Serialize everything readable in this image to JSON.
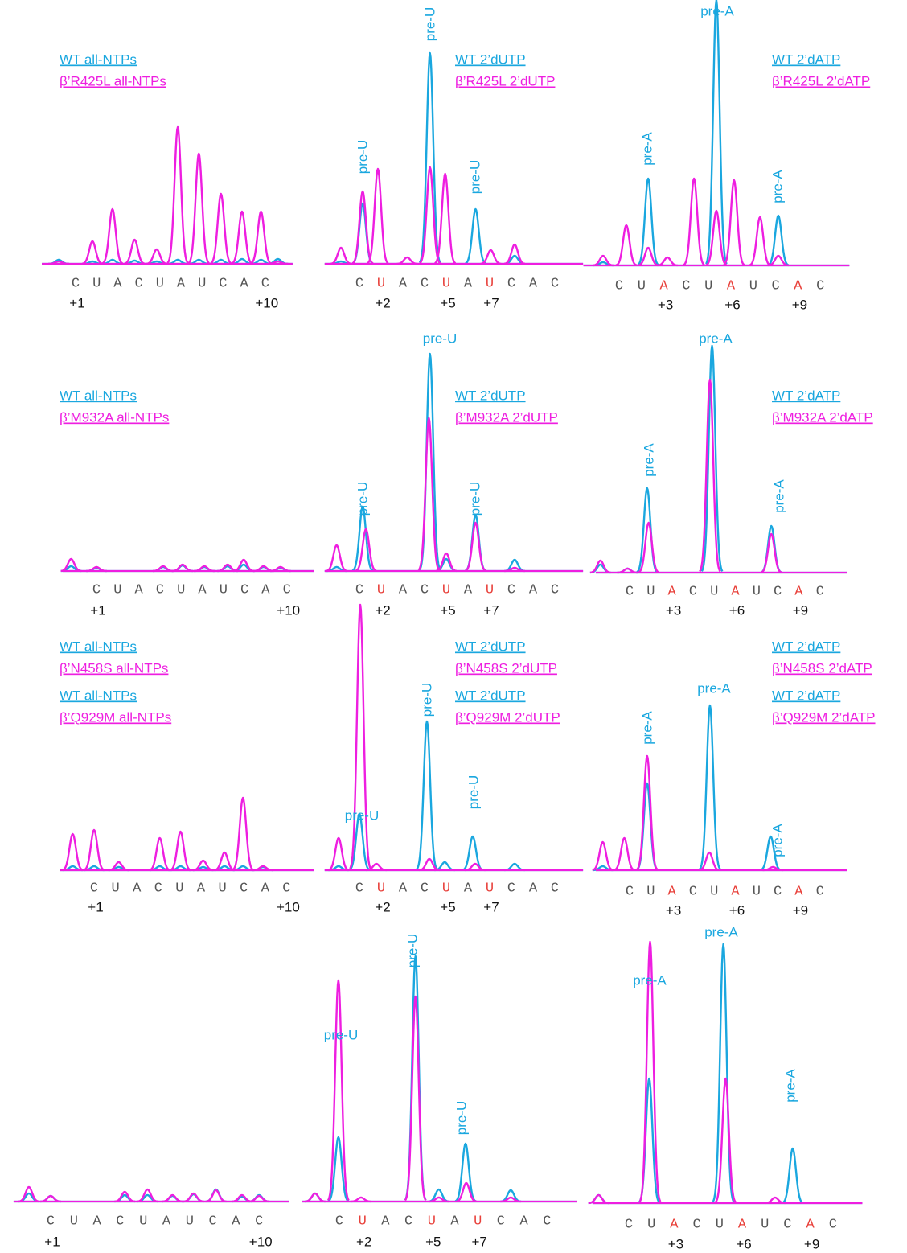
{
  "chart_data": [
    {
      "type": "chromatogram",
      "sequence": [
        "C",
        "U",
        "A",
        "C",
        "U",
        "A",
        "U",
        "C",
        "A",
        "C"
      ],
      "highlight_ticks": false,
      "xticks": [
        {
          "value": 1,
          "label": "+1"
        },
        {
          "value": 10,
          "label": "+10"
        }
      ],
      "annotations": [],
      "series": [
        {
          "name": "WT all-NTPs",
          "color": "#1aa7df",
          "x": [
            0.2,
            1.8,
            2.75,
            3.8,
            4.85,
            5.85,
            6.85,
            7.9,
            8.9,
            9.8,
            10.6
          ],
          "values": [
            5,
            3,
            5,
            4,
            3,
            5,
            5,
            5,
            6,
            5,
            6
          ]
        },
        {
          "name": "β’R425L all-NTPs",
          "color": "#ee1ee0",
          "x": [
            0.2,
            1.8,
            2.75,
            3.8,
            4.85,
            5.85,
            6.85,
            7.9,
            8.9,
            9.8,
            10.6
          ],
          "values": [
            3,
            28,
            68,
            30,
            18,
            170,
            137,
            87,
            65,
            65,
            3
          ]
        }
      ]
    },
    {
      "type": "chromatogram",
      "sequence": [
        "C",
        "U",
        "A",
        "C",
        "U",
        "A",
        "U",
        "C",
        "A",
        "C"
      ],
      "highlight_ticks": true,
      "highlight_color": "#e8403a",
      "xticks": [
        {
          "value": 2,
          "label": "+2"
        },
        {
          "value": 5,
          "label": "+5"
        },
        {
          "value": 7,
          "label": "+7"
        }
      ],
      "annotations": [
        "pre-U",
        "pre-U",
        "pre-U"
      ],
      "series": [
        {
          "name": "WT 2’dUTP",
          "color": "#1aa7df",
          "x": [
            0.15,
            1.15,
            4.25,
            6.35,
            8.15
          ],
          "values": [
            3,
            75,
            262,
            68,
            10
          ]
        },
        {
          "name": "β’R425L 2’dUTP",
          "color": "#ee1ee0",
          "x": [
            0.15,
            1.15,
            1.85,
            3.2,
            4.25,
            4.95,
            7.05,
            8.15
          ],
          "values": [
            20,
            90,
            118,
            8,
            120,
            112,
            17,
            24
          ]
        }
      ]
    },
    {
      "type": "chromatogram",
      "sequence": [
        "C",
        "U",
        "A",
        "C",
        "U",
        "A",
        "U",
        "C",
        "A",
        "C"
      ],
      "highlight_ticks": true,
      "highlight_color": "#e8403a",
      "xticks": [
        {
          "value": 3,
          "label": "+3"
        },
        {
          "value": 6,
          "label": "+6"
        },
        {
          "value": 9,
          "label": "+9"
        }
      ],
      "annotations": [
        "pre-A",
        "pre-A",
        "pre-A"
      ],
      "series": [
        {
          "name": "WT 2’dATP",
          "color": "#1aa7df",
          "x": [
            0.28,
            2.3,
            5.35,
            8.12
          ],
          "values": [
            4,
            108,
            330,
            62
          ]
        },
        {
          "name": "β’R425L 2’dATP",
          "color": "#ee1ee0",
          "x": [
            0.28,
            1.32,
            2.3,
            3.16,
            4.35,
            5.35,
            6.14,
            7.3,
            8.12
          ],
          "values": [
            12,
            50,
            22,
            10,
            108,
            68,
            106,
            60,
            12
          ]
        }
      ]
    },
    {
      "type": "chromatogram",
      "sequence": [
        "C",
        "U",
        "A",
        "C",
        "U",
        "A",
        "U",
        "C",
        "A",
        "C"
      ],
      "highlight_ticks": false,
      "xticks": [
        {
          "value": 1,
          "label": "+1"
        },
        {
          "value": 10,
          "label": "+10"
        }
      ],
      "annotations": [],
      "series": [
        {
          "name": "WT all-NTPs",
          "color": "#1aa7df",
          "x": [
            -0.2,
            1,
            4.15,
            5.07,
            6.1,
            7.2,
            7.96,
            8.9,
            9.7
          ],
          "values": [
            6,
            4,
            5,
            7,
            5,
            6,
            8,
            5,
            4
          ]
        },
        {
          "name": "β’M932A all-NTPs",
          "color": "#ee1ee0",
          "x": [
            -0.2,
            1,
            4.15,
            5.07,
            6.1,
            7.2,
            7.96,
            8.9,
            9.7
          ],
          "values": [
            15,
            5,
            6,
            8,
            6,
            8,
            14,
            6,
            5
          ]
        }
      ]
    },
    {
      "type": "chromatogram",
      "sequence": [
        "C",
        "U",
        "A",
        "C",
        "U",
        "A",
        "U",
        "C",
        "A",
        "C"
      ],
      "highlight_ticks": true,
      "highlight_color": "#e8403a",
      "xticks": [
        {
          "value": 2,
          "label": "+2"
        },
        {
          "value": 5,
          "label": "+5"
        },
        {
          "value": 7,
          "label": "+7"
        }
      ],
      "annotations": [
        "pre-U",
        "pre-U",
        "pre-U"
      ],
      "series": [
        {
          "name": "WT 2’dUTP",
          "color": "#1aa7df",
          "x": [
            -0.05,
            1.15,
            4.25,
            5.0,
            6.35,
            8.15
          ],
          "values": [
            5,
            80,
            270,
            15,
            70,
            14
          ]
        },
        {
          "name": "β’M932A 2’dUTP",
          "color": "#ee1ee0",
          "x": [
            -0.05,
            1.3,
            4.2,
            5.0,
            6.35,
            8.15
          ],
          "values": [
            32,
            52,
            190,
            22,
            60,
            4
          ]
        }
      ]
    },
    {
      "type": "chromatogram",
      "sequence": [
        "C",
        "U",
        "A",
        "C",
        "U",
        "A",
        "U",
        "C",
        "A",
        "C"
      ],
      "highlight_ticks": true,
      "highlight_color": "#e8403a",
      "xticks": [
        {
          "value": 3,
          "label": "+3"
        },
        {
          "value": 6,
          "label": "+6"
        },
        {
          "value": 9,
          "label": "+9"
        }
      ],
      "annotations": [
        "pre-A",
        "pre-A",
        "pre-A"
      ],
      "series": [
        {
          "name": "WT 2’dATP",
          "color": "#1aa7df",
          "x": [
            -0.38,
            0.9,
            1.83,
            4.9,
            7.7
          ],
          "values": [
            10,
            5,
            105,
            282,
            58
          ]
        },
        {
          "name": "β’M932A 2’dATP",
          "color": "#ee1ee0",
          "x": [
            -0.38,
            0.9,
            1.9,
            4.8,
            7.7
          ],
          "values": [
            15,
            5,
            62,
            240,
            48
          ]
        }
      ]
    },
    {
      "type": "chromatogram",
      "sequence": [
        "C",
        "U",
        "A",
        "C",
        "U",
        "A",
        "U",
        "C",
        "A",
        "C"
      ],
      "highlight_ticks": false,
      "xticks": [
        {
          "value": 1,
          "label": "+1"
        },
        {
          "value": 10,
          "label": "+10"
        }
      ],
      "annotations": [],
      "series": [
        {
          "name": "WT all-NTPs",
          "color": "#1aa7df",
          "x": [
            0,
            1,
            2.15,
            4.07,
            5.04,
            6.1,
            7.1,
            7.96,
            8.9
          ],
          "values": [
            5,
            5,
            4,
            5,
            5,
            4,
            5,
            5,
            4
          ]
        },
        {
          "name": "β’Q929M all-NTPs",
          "color": "#ee1ee0",
          "x": [
            0,
            1,
            2.15,
            4.07,
            5.04,
            6.1,
            7.1,
            7.96,
            8.9
          ],
          "values": [
            45,
            50,
            10,
            40,
            48,
            12,
            22,
            90,
            5
          ]
        }
      ]
    },
    {
      "type": "chromatogram",
      "sequence": [
        "C",
        "U",
        "A",
        "C",
        "U",
        "A",
        "U",
        "C",
        "A",
        "C"
      ],
      "highlight_ticks": true,
      "highlight_color": "#e8403a",
      "xticks": [
        {
          "value": 2,
          "label": "+2"
        },
        {
          "value": 5,
          "label": "+5"
        },
        {
          "value": 7,
          "label": "+7"
        }
      ],
      "annotations": [
        "pre-U",
        "pre-U",
        "pre-U"
      ],
      "series": [
        {
          "name": "WT 2’dUTP",
          "color": "#1aa7df",
          "x": [
            0.04,
            1.0,
            4.11,
            4.93,
            6.22,
            8.15
          ],
          "values": [
            5,
            70,
            185,
            10,
            42,
            8
          ]
        },
        {
          "name": "β’Q929M 2’dUTP",
          "color": "#ee1ee0",
          "x": [
            0.04,
            1.04,
            1.78,
            4.22,
            6.33
          ],
          "values": [
            40,
            330,
            8,
            14,
            8
          ]
        }
      ]
    },
    {
      "type": "chromatogram",
      "sequence": [
        "C",
        "U",
        "A",
        "C",
        "U",
        "A",
        "U",
        "C",
        "A",
        "C"
      ],
      "highlight_ticks": true,
      "highlight_color": "#e8403a",
      "xticks": [
        {
          "value": 3,
          "label": "+3"
        },
        {
          "value": 6,
          "label": "+6"
        },
        {
          "value": 9,
          "label": "+9"
        }
      ],
      "annotations": [
        "pre-A",
        "pre-A",
        "pre-A"
      ],
      "series": [
        {
          "name": "WT 2’dATP",
          "color": "#1aa7df",
          "x": [
            -0.27,
            1.83,
            4.8,
            7.67
          ],
          "values": [
            5,
            108,
            205,
            42
          ]
        },
        {
          "name": "β’Q929M 2’dATP",
          "color": "#ee1ee0",
          "x": [
            -0.27,
            0.75,
            1.83,
            4.77,
            7.78
          ],
          "values": [
            35,
            40,
            142,
            22,
            4
          ]
        }
      ]
    },
    {
      "type": "chromatogram",
      "sequence": [
        "C",
        "U",
        "A",
        "C",
        "U",
        "A",
        "U",
        "C",
        "A",
        "C"
      ],
      "highlight_ticks": false,
      "xticks": [
        {
          "value": 1,
          "label": "+1"
        },
        {
          "value": 10,
          "label": "+10"
        }
      ],
      "annotations": [],
      "series": [
        {
          "name": "WT all-NTPs",
          "color": "#1aa7df",
          "x": [
            0.06,
            1,
            4.2,
            5.18,
            6.26,
            7.17,
            8.14,
            9.26,
            10.0
          ],
          "values": [
            10,
            7,
            8,
            8,
            7,
            9,
            15,
            6,
            8
          ]
        },
        {
          "name": "β’N458S all-NTPs",
          "color": "#ee1ee0",
          "x": [
            0.06,
            1,
            4.2,
            5.18,
            6.26,
            7.17,
            8.14,
            9.26,
            10.0
          ],
          "values": [
            18,
            7,
            12,
            15,
            8,
            10,
            14,
            8,
            7
          ]
        }
      ]
    },
    {
      "type": "chromatogram",
      "sequence": [
        "C",
        "U",
        "A",
        "C",
        "U",
        "A",
        "U",
        "C",
        "A",
        "C"
      ],
      "highlight_ticks": true,
      "highlight_color": "#e8403a",
      "xticks": [
        {
          "value": 2,
          "label": "+2"
        },
        {
          "value": 5,
          "label": "+5"
        },
        {
          "value": 7,
          "label": "+7"
        }
      ],
      "annotations": [
        "pre-U",
        "pre-U",
        "pre-U"
      ],
      "series": [
        {
          "name": "WT 2’dUTP",
          "color": "#1aa7df",
          "x": [
            -0.05,
            0.96,
            4.3,
            5.31,
            6.47,
            8.43
          ],
          "values": [
            10,
            80,
            305,
            15,
            72,
            14
          ]
        },
        {
          "name": "β’N458S 2’dUTP",
          "color": "#ee1ee0",
          "x": [
            -0.05,
            0.96,
            1.94,
            4.3,
            5.31,
            6.5,
            8.43
          ],
          "values": [
            10,
            275,
            5,
            255,
            5,
            23,
            5
          ]
        }
      ]
    },
    {
      "type": "chromatogram",
      "sequence": [
        "C",
        "U",
        "A",
        "C",
        "U",
        "A",
        "U",
        "C",
        "A",
        "C"
      ],
      "highlight_ticks": true,
      "highlight_color": "#e8403a",
      "xticks": [
        {
          "value": 3,
          "label": "+3"
        },
        {
          "value": 6,
          "label": "+6"
        },
        {
          "value": 9,
          "label": "+9"
        }
      ],
      "annotations": [
        "pre-A",
        "pre-A",
        "pre-A"
      ],
      "series": [
        {
          "name": "WT 2’dATP",
          "color": "#1aa7df",
          "x": [
            -0.33,
            1.9,
            5.17,
            8.23
          ],
          "values": [
            10,
            155,
            322,
            68
          ]
        },
        {
          "name": "β’N458S 2’dATP",
          "color": "#ee1ee0",
          "x": [
            -0.33,
            1.94,
            5.27,
            7.45
          ],
          "values": [
            10,
            325,
            155,
            7
          ]
        }
      ]
    }
  ]
}
